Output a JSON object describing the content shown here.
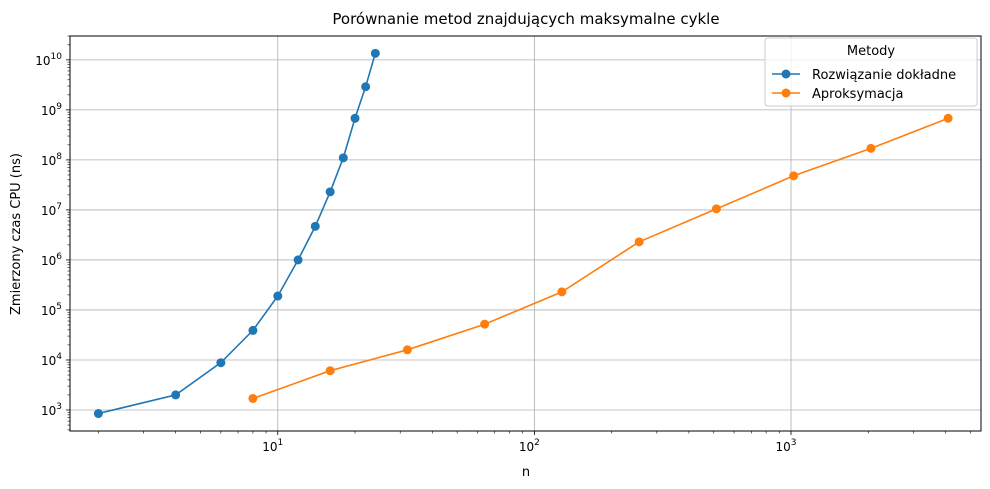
{
  "chart_data": {
    "type": "line",
    "title": "Porównanie metod znajdujących maksymalne cykle",
    "xlabel": "n",
    "ylabel": "Zmierzony czas CPU (ns)",
    "xscale": "log",
    "yscale": "log",
    "xlim": [
      1.55,
      5500
    ],
    "ylim": [
      380,
      30000000000
    ],
    "grid": true,
    "legend": {
      "title": "Metody",
      "placement": "top-right"
    },
    "x_ticks": [
      {
        "value": 10,
        "base": "10",
        "exp": "1"
      },
      {
        "value": 100,
        "base": "10",
        "exp": "2"
      },
      {
        "value": 1000,
        "base": "10",
        "exp": "3"
      }
    ],
    "y_ticks": [
      {
        "value": 1000,
        "base": "10",
        "exp": "3"
      },
      {
        "value": 10000,
        "base": "10",
        "exp": "4"
      },
      {
        "value": 100000,
        "base": "10",
        "exp": "5"
      },
      {
        "value": 1000000,
        "base": "10",
        "exp": "6"
      },
      {
        "value": 10000000,
        "base": "10",
        "exp": "7"
      },
      {
        "value": 100000000,
        "base": "10",
        "exp": "8"
      },
      {
        "value": 1000000000,
        "base": "10",
        "exp": "9"
      },
      {
        "value": 10000000000,
        "base": "10",
        "exp": "10"
      }
    ],
    "series": [
      {
        "name": "Rozwiązanie dokładne",
        "color": "#1f77b4",
        "x": [
          2,
          4,
          6,
          8,
          10,
          12,
          14,
          16,
          18,
          20,
          22,
          24
        ],
        "y": [
          850,
          2000,
          8800,
          39000,
          190000,
          1000000,
          4700000,
          23000000,
          110000000,
          680000000,
          2900000000,
          13500000000
        ]
      },
      {
        "name": "Aproksymacja",
        "color": "#ff7f0e",
        "x": [
          8,
          16,
          32,
          64,
          128,
          256,
          512,
          1024,
          2048,
          4096
        ],
        "y": [
          1700,
          6100,
          16000,
          52000,
          230000,
          2300000,
          10500000,
          48000000,
          170000000,
          680000000
        ]
      }
    ]
  }
}
